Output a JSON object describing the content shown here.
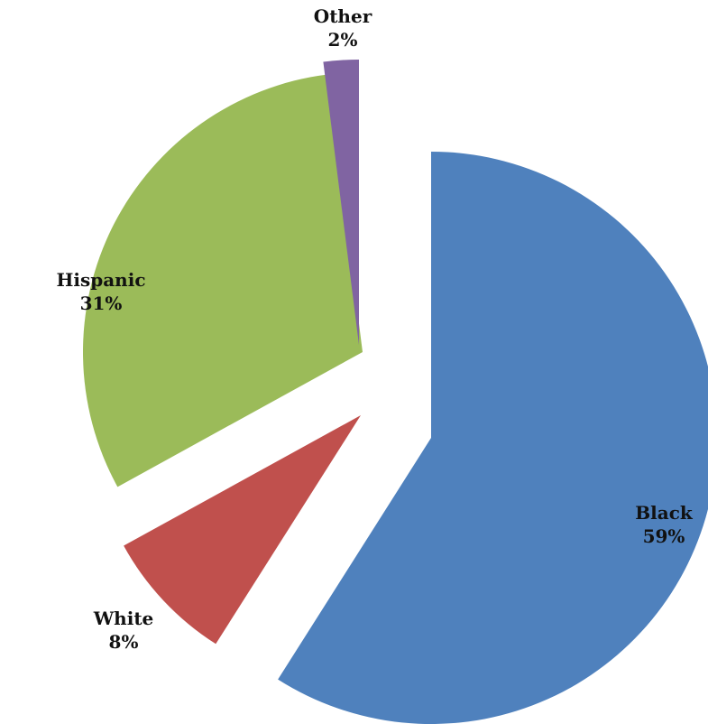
{
  "chart_data": {
    "type": "pie",
    "title": "",
    "exploded": true,
    "slices": [
      {
        "label": "Black",
        "value": 59,
        "display": "59%",
        "color": "#4F81BD"
      },
      {
        "label": "White",
        "value": 8,
        "display": "8%",
        "color": "#C0504D"
      },
      {
        "label": "Hispanic",
        "value": 31,
        "display": "31%",
        "color": "#9BBB59"
      },
      {
        "label": "Other",
        "value": 2,
        "display": "2%",
        "color": "#8064A2"
      }
    ]
  }
}
